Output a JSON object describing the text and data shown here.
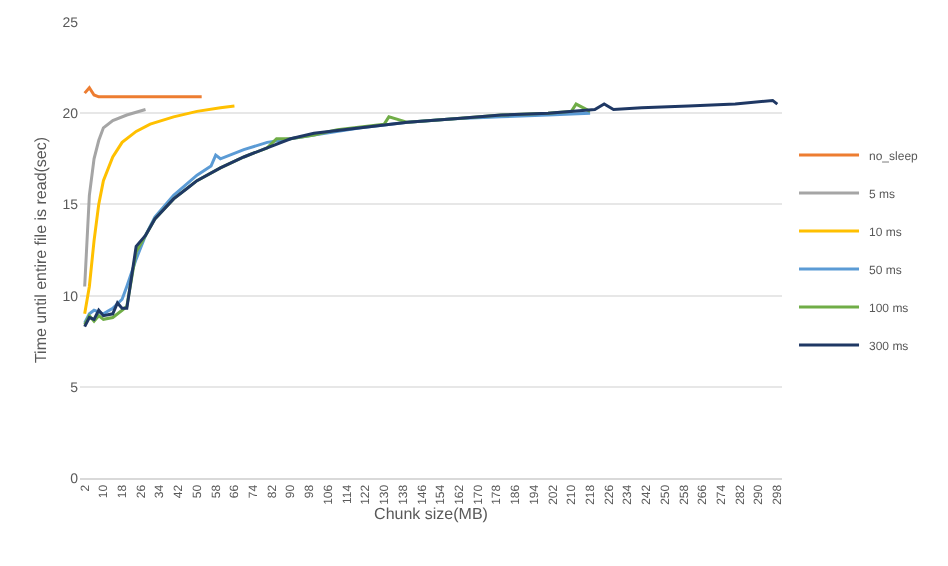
{
  "chart_data": {
    "type": "line",
    "xlabel": "Chunk size(MB)",
    "ylabel": "Time until entire file is read(sec)",
    "xlim": [
      0,
      300
    ],
    "xticks": [
      2,
      10,
      18,
      26,
      34,
      42,
      50,
      58,
      66,
      74,
      82,
      90,
      98,
      106,
      114,
      122,
      130,
      138,
      146,
      154,
      162,
      170,
      178,
      186,
      194,
      202,
      210,
      218,
      226,
      234,
      242,
      250,
      258,
      266,
      274,
      282,
      290,
      298
    ],
    "ylim": [
      0,
      25
    ],
    "yticks": [
      0,
      5,
      10,
      15,
      20,
      25
    ],
    "grid": "y",
    "legend": "right",
    "marker": "none",
    "line_style": "solid",
    "series": [
      {
        "name": "no_sleep",
        "color": "#ed7d31",
        "x": [
          2,
          4,
          6,
          8,
          12,
          20,
          30,
          40,
          52
        ],
        "values": [
          21.1,
          21.4,
          21.0,
          20.9,
          20.9,
          20.9,
          20.9,
          20.9,
          20.9
        ]
      },
      {
        "name": "5 ms",
        "color": "#a5a5a5",
        "x": [
          2,
          4,
          6,
          8,
          10,
          14,
          20,
          28
        ],
        "values": [
          10.5,
          15.5,
          17.5,
          18.5,
          19.2,
          19.6,
          19.9,
          20.2
        ]
      },
      {
        "name": "10 ms",
        "color": "#ffc000",
        "x": [
          2,
          4,
          6,
          8,
          10,
          14,
          18,
          24,
          30,
          40,
          50,
          60,
          66
        ],
        "values": [
          9.0,
          10.5,
          13.0,
          15.0,
          16.3,
          17.6,
          18.4,
          19.0,
          19.4,
          19.8,
          20.1,
          20.3,
          20.4
        ]
      },
      {
        "name": "50 ms",
        "color": "#5b9bd5",
        "x": [
          2,
          4,
          6,
          10,
          14,
          18,
          20,
          24,
          28,
          32,
          40,
          50,
          56,
          58,
          60,
          70,
          80,
          90,
          100,
          120,
          140,
          160,
          180,
          200,
          218
        ],
        "values": [
          8.5,
          9.0,
          9.2,
          9.0,
          9.3,
          9.8,
          10.5,
          12.0,
          13.3,
          14.3,
          15.5,
          16.6,
          17.1,
          17.7,
          17.5,
          18.0,
          18.4,
          18.6,
          18.8,
          19.2,
          19.5,
          19.7,
          19.8,
          19.9,
          20.0
        ]
      },
      {
        "name": "100 ms",
        "color": "#70ad47",
        "x": [
          2,
          4,
          6,
          8,
          10,
          14,
          18,
          20,
          24,
          28,
          32,
          40,
          50,
          60,
          70,
          80,
          84,
          90,
          100,
          110,
          130,
          132,
          140,
          150,
          160,
          180,
          200,
          210,
          212,
          218
        ],
        "values": [
          8.4,
          8.9,
          8.6,
          8.9,
          8.7,
          8.8,
          9.2,
          9.4,
          12.4,
          13.3,
          14.2,
          15.3,
          16.3,
          17.0,
          17.6,
          18.1,
          18.6,
          18.6,
          18.8,
          19.1,
          19.4,
          19.8,
          19.5,
          19.6,
          19.7,
          19.9,
          20.0,
          20.1,
          20.5,
          20.1
        ]
      },
      {
        "name": "300 ms",
        "color": "#1f3864",
        "x": [
          2,
          4,
          6,
          8,
          10,
          14,
          16,
          18,
          20,
          22,
          24,
          28,
          32,
          40,
          46,
          50,
          60,
          70,
          80,
          90,
          100,
          120,
          140,
          160,
          180,
          200,
          220,
          224,
          228,
          240,
          260,
          280,
          296,
          298
        ],
        "values": [
          8.3,
          8.8,
          8.7,
          9.2,
          8.9,
          9.0,
          9.6,
          9.3,
          9.3,
          11.0,
          12.7,
          13.3,
          14.2,
          15.3,
          15.9,
          16.3,
          17.0,
          17.6,
          18.1,
          18.6,
          18.9,
          19.2,
          19.5,
          19.7,
          19.9,
          20.0,
          20.2,
          20.5,
          20.2,
          20.3,
          20.4,
          20.5,
          20.7,
          20.5
        ]
      }
    ]
  }
}
